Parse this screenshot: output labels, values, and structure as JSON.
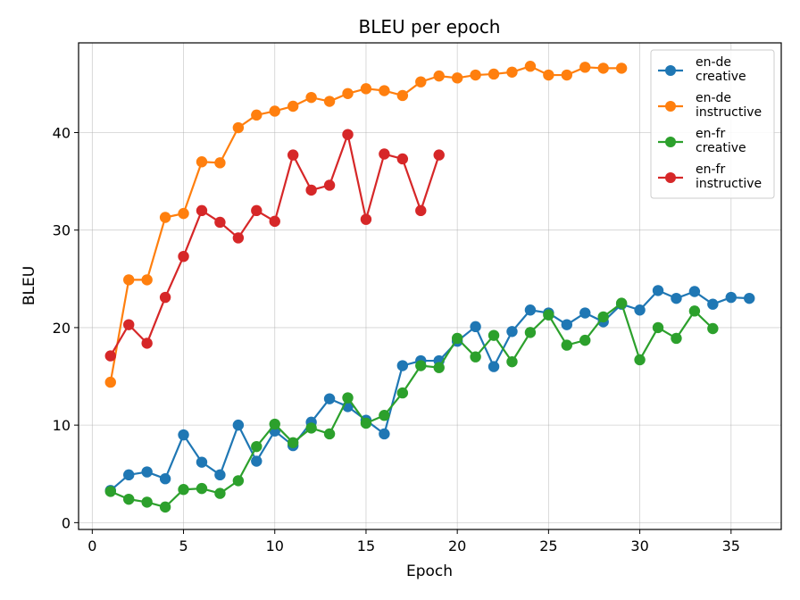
{
  "chart_data": {
    "type": "line",
    "title": "BLEU per epoch",
    "xlabel": "Epoch",
    "ylabel": "BLEU",
    "xlim": [
      -0.75,
      37.75
    ],
    "ylim": [
      -0.7,
      49.2
    ],
    "xticks": [
      0,
      5,
      10,
      15,
      20,
      25,
      30,
      35
    ],
    "yticks": [
      0,
      10,
      20,
      30,
      40
    ],
    "grid": true,
    "legend_position": "top-right",
    "series": [
      {
        "name": "en-de\ncreative",
        "color": "#1f77b4",
        "x": [
          1,
          2,
          3,
          4,
          5,
          6,
          7,
          8,
          9,
          10,
          11,
          12,
          13,
          14,
          15,
          16,
          17,
          18,
          19,
          20,
          21,
          22,
          23,
          24,
          25,
          26,
          27,
          28,
          29,
          30,
          31,
          32,
          33,
          34,
          35,
          36
        ],
        "y": [
          3.3,
          4.9,
          5.2,
          4.5,
          9.0,
          6.2,
          4.9,
          10.0,
          6.3,
          9.4,
          7.9,
          10.3,
          12.7,
          11.9,
          10.5,
          9.1,
          16.1,
          16.6,
          16.6,
          18.6,
          20.1,
          16.0,
          19.6,
          21.8,
          21.5,
          20.3,
          21.5,
          20.6,
          22.4,
          21.8,
          23.8,
          23.0,
          23.7,
          22.4,
          23.1,
          23.0
        ]
      },
      {
        "name": "en-de\ninstructive",
        "color": "#ff7f0e",
        "x": [
          1,
          2,
          3,
          4,
          5,
          6,
          7,
          8,
          9,
          10,
          11,
          12,
          13,
          14,
          15,
          16,
          17,
          18,
          19,
          20,
          21,
          22,
          23,
          24,
          25,
          26,
          27,
          28,
          29
        ],
        "y": [
          14.4,
          24.9,
          24.9,
          31.3,
          31.7,
          37.0,
          36.9,
          40.5,
          41.8,
          42.2,
          42.7,
          43.6,
          43.2,
          44.0,
          44.5,
          44.3,
          43.8,
          45.2,
          45.8,
          45.6,
          45.9,
          46.0,
          46.2,
          46.8,
          45.9,
          45.9,
          46.7,
          46.6,
          46.6
        ]
      },
      {
        "name": "en-fr\ncreative",
        "color": "#2ca02c",
        "x": [
          1,
          2,
          3,
          4,
          5,
          6,
          7,
          8,
          9,
          10,
          11,
          12,
          13,
          14,
          15,
          16,
          17,
          18,
          19,
          20,
          21,
          22,
          23,
          24,
          25,
          26,
          27,
          28,
          29,
          30,
          31,
          32,
          33,
          34
        ],
        "y": [
          3.2,
          2.4,
          2.1,
          1.6,
          3.4,
          3.5,
          3.0,
          4.3,
          7.8,
          10.1,
          8.2,
          9.7,
          9.1,
          12.8,
          10.2,
          11.0,
          13.3,
          16.1,
          15.9,
          18.9,
          17.0,
          19.2,
          16.5,
          19.5,
          21.3,
          18.2,
          18.7,
          21.1,
          22.5,
          16.7,
          20.0,
          18.9,
          21.7,
          19.9
        ]
      },
      {
        "name": "en-fr\ninstructive",
        "color": "#d62728",
        "x": [
          1,
          2,
          3,
          4,
          5,
          6,
          7,
          8,
          9,
          10,
          11,
          12,
          13,
          14,
          15,
          16,
          17,
          18,
          19
        ],
        "y": [
          17.1,
          20.3,
          18.4,
          23.1,
          27.3,
          32.0,
          30.8,
          29.2,
          32.0,
          30.9,
          37.7,
          34.1,
          34.6,
          39.8,
          31.1,
          37.8,
          37.3,
          32.0,
          37.7
        ]
      }
    ]
  }
}
